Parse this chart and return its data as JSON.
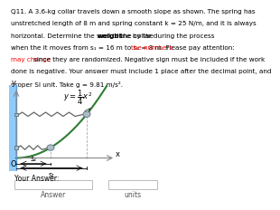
{
  "line1": "Q11. A 3.6-kg collar travels down a smooth slope as shown. The spring has",
  "line2": "unstretched length of 8 m and spring constant k = 25 N/m, and it is always",
  "line3a": "horizontal. Determine the work done by the ",
  "line3b": "weight",
  "line3c": " to the collar during the process",
  "line4": "when the it moves from s₁ = 16 m to s₂ = 8 m. Please pay attention: ",
  "line4r": "the numbers",
  "line5r": "may change",
  "line5b": " since they are randomized. Negative sign must be included if the work",
  "line6": "done is negative. Your answer must include 1 place after the decimal point, and",
  "line7": "proper SI unit. Take g = 9.81 m/s².",
  "curve_color": "#2e7d32",
  "wall_color": "#90caf9",
  "wall_edge_color": "#5b9bd5",
  "spring_color": "#666666",
  "collar_fill": "#b0bec5",
  "collar_edge": "#607d8b",
  "answer_label": "Answer",
  "units_label": "units",
  "your_answer_label": "Your Answer:",
  "xlabel": "x",
  "ylabel": "y",
  "origin_label": "O",
  "s1_label": "s₁",
  "s2_label": "s₂",
  "bg_color": "#ffffff",
  "text_fontsize": 5.2,
  "eq_fontsize": 6.0
}
